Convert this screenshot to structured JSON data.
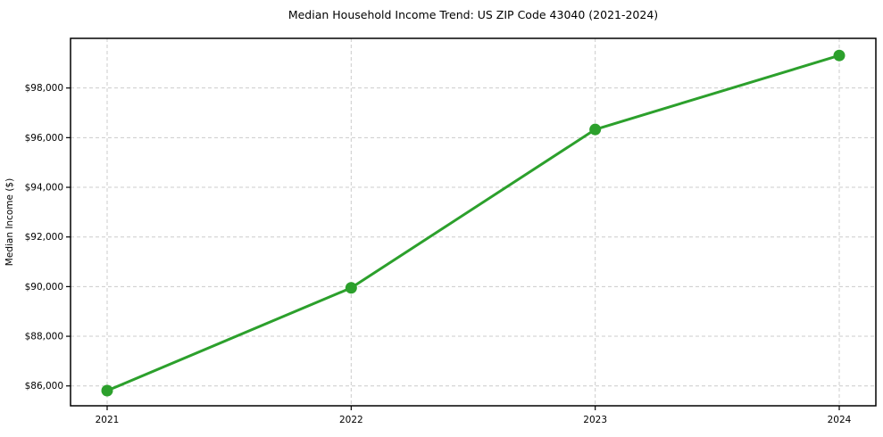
{
  "figure": {
    "background": "#ffffff"
  },
  "chart_data": {
    "type": "line",
    "title": "Median Household Income Trend: US ZIP Code 43040 (2021-2024)",
    "xlabel": "",
    "ylabel": "Median Income ($)",
    "x": [
      2021,
      2022,
      2023,
      2024
    ],
    "values": [
      85810,
      89950,
      96330,
      99310
    ],
    "x_tick_labels": [
      "2021",
      "2022",
      "2023",
      "2024"
    ],
    "y_ticks": [
      86000,
      88000,
      90000,
      92000,
      94000,
      96000,
      98000
    ],
    "y_tick_labels": [
      "$86,000",
      "$88,000",
      "$90,000",
      "$92,000",
      "$94,000",
      "$96,000",
      "$98,000"
    ],
    "xlim": [
      2020.85,
      2024.15
    ],
    "ylim": [
      85200,
      100000
    ],
    "grid": true,
    "grid_style": "dashed",
    "legend": "none",
    "marker": "circle",
    "line_color": "#2ca02c",
    "grid_color": "#cccccc",
    "axis_color": "#000000",
    "text_color": "#000000"
  }
}
